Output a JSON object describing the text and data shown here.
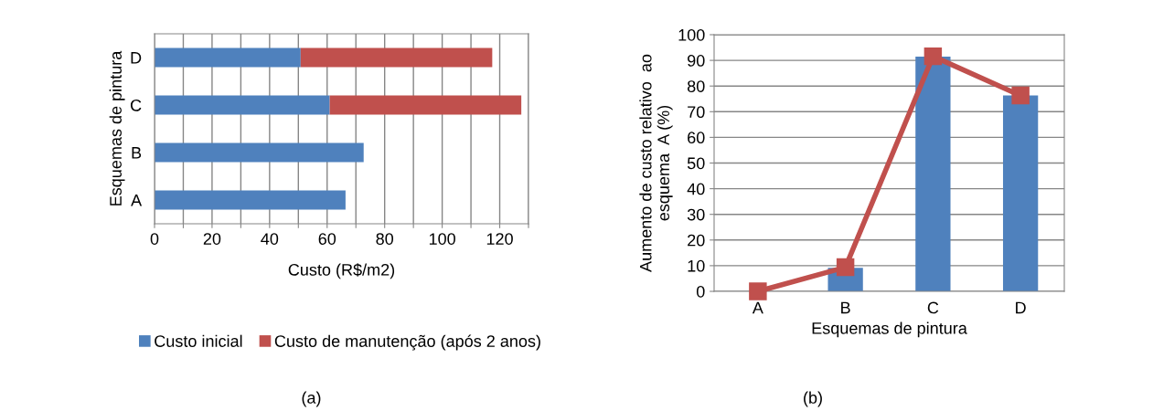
{
  "chart_data": [
    {
      "type": "bar",
      "orientation": "horizontal",
      "stacked": true,
      "categories": [
        "D",
        "C",
        "B",
        "A"
      ],
      "xlabel": "Custo (R$/m2)",
      "ylabel": "Esquemas de pintura",
      "xlim": [
        0,
        130
      ],
      "xticks": [
        0,
        {
          "value": 10,
          "label": null
        },
        20,
        {
          "value": 30,
          "label": null
        },
        40,
        {
          "value": 50,
          "label": null
        },
        60,
        {
          "value": 70,
          "label": null
        },
        80,
        {
          "value": 90,
          "label": null
        },
        100,
        {
          "value": 110,
          "label": null
        },
        120,
        {
          "value": 130,
          "label": null
        }
      ],
      "grid": "x",
      "legend": "bottom",
      "annotations": [
        "(a)"
      ],
      "series": [
        {
          "name": "Custo inicial",
          "color": "#4f81bd",
          "values": [
            50.8,
            60.9,
            72.7,
            66.4
          ]
        },
        {
          "name": "Custo de manutenção (após 2 anos)",
          "color": "#c0504d",
          "values": [
            66.6,
            66.6,
            null,
            null
          ]
        }
      ]
    },
    {
      "type": "bar",
      "categories": [
        "A",
        "B",
        "C",
        "D"
      ],
      "xlabel": "Esquemas de pintura",
      "ylabel": "Aumento de custo relativo  ao\nesquema  A (%)",
      "ylim": [
        0,
        100
      ],
      "yticks": [
        0,
        10,
        20,
        30,
        40,
        50,
        60,
        70,
        80,
        90,
        100
      ],
      "grid": "y",
      "annotations": [
        "(b)"
      ],
      "series": [
        {
          "type": "bar",
          "color": "#4f81bd",
          "values": [
            0,
            9.2,
            91.5,
            76.3
          ]
        },
        {
          "type": "line",
          "color": "#c0504d",
          "marker": "square",
          "values": [
            0,
            9.4,
            91.6,
            76.3
          ]
        }
      ]
    }
  ]
}
